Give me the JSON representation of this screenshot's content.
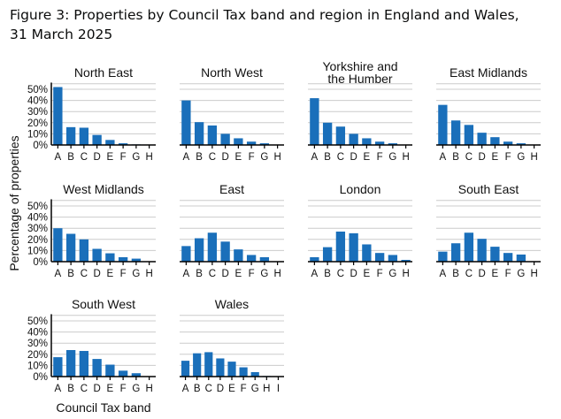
{
  "title": "Figure 3: Properties by Council Tax band and region in England and Wales, 31 March 2025",
  "colors": {
    "bar": "#1a6fba",
    "grid": "#cccccc",
    "axis": "#000000"
  },
  "chart_data": {
    "type": "bar",
    "layout": "small-multiples",
    "ylabel": "Percentage of properties",
    "xlabel": "Council Tax band",
    "ylim": [
      0,
      55
    ],
    "yticks": [
      "0%",
      "10%",
      "20%",
      "30%",
      "40%",
      "50%"
    ],
    "grid": true,
    "panels": [
      {
        "title": "North East",
        "categories": [
          "A",
          "B",
          "C",
          "D",
          "E",
          "F",
          "G",
          "H"
        ],
        "values": [
          52,
          16,
          15.5,
          9,
          4.5,
          1.5,
          0.5,
          0.2
        ]
      },
      {
        "title": "North West",
        "categories": [
          "A",
          "B",
          "C",
          "D",
          "E",
          "F",
          "G",
          "H"
        ],
        "values": [
          40,
          20.5,
          17.5,
          10,
          6,
          3,
          1.5,
          0.3
        ]
      },
      {
        "title": "Yorkshire and the Humber",
        "categories": [
          "A",
          "B",
          "C",
          "D",
          "E",
          "F",
          "G",
          "H"
        ],
        "values": [
          42,
          20,
          16.5,
          10,
          6,
          3,
          1.5,
          0.3
        ]
      },
      {
        "title": "East Midlands",
        "categories": [
          "A",
          "B",
          "C",
          "D",
          "E",
          "F",
          "G",
          "H"
        ],
        "values": [
          36,
          22,
          18,
          11,
          7,
          3,
          1.5,
          0.2
        ]
      },
      {
        "title": "West Midlands",
        "categories": [
          "A",
          "B",
          "C",
          "D",
          "E",
          "F",
          "G",
          "H"
        ],
        "values": [
          30,
          25,
          20,
          11.5,
          7.5,
          4,
          2.7,
          0.3
        ]
      },
      {
        "title": "East",
        "categories": [
          "A",
          "B",
          "C",
          "D",
          "E",
          "F",
          "G",
          "H"
        ],
        "values": [
          14,
          21,
          26,
          18,
          11,
          6,
          4,
          0.3
        ]
      },
      {
        "title": "London",
        "categories": [
          "A",
          "B",
          "C",
          "D",
          "E",
          "F",
          "G",
          "H"
        ],
        "values": [
          4,
          13,
          27,
          25.5,
          15.5,
          7.8,
          6,
          1.6
        ]
      },
      {
        "title": "South East",
        "categories": [
          "A",
          "B",
          "C",
          "D",
          "E",
          "F",
          "G",
          "H"
        ],
        "values": [
          9,
          16.5,
          26,
          20.5,
          13.4,
          7.8,
          6.4,
          0.3
        ]
      },
      {
        "title": "South West",
        "categories": [
          "A",
          "B",
          "C",
          "D",
          "E",
          "F",
          "G",
          "H"
        ],
        "values": [
          17.4,
          23.8,
          23,
          15.8,
          10.7,
          5.3,
          3,
          0.3
        ]
      },
      {
        "title": "Wales",
        "categories": [
          "A",
          "B",
          "C",
          "D",
          "E",
          "F",
          "G",
          "H",
          "I"
        ],
        "values": [
          14.2,
          20.9,
          21.9,
          16.3,
          13.4,
          8.3,
          4,
          0.5,
          0.2
        ]
      }
    ]
  }
}
